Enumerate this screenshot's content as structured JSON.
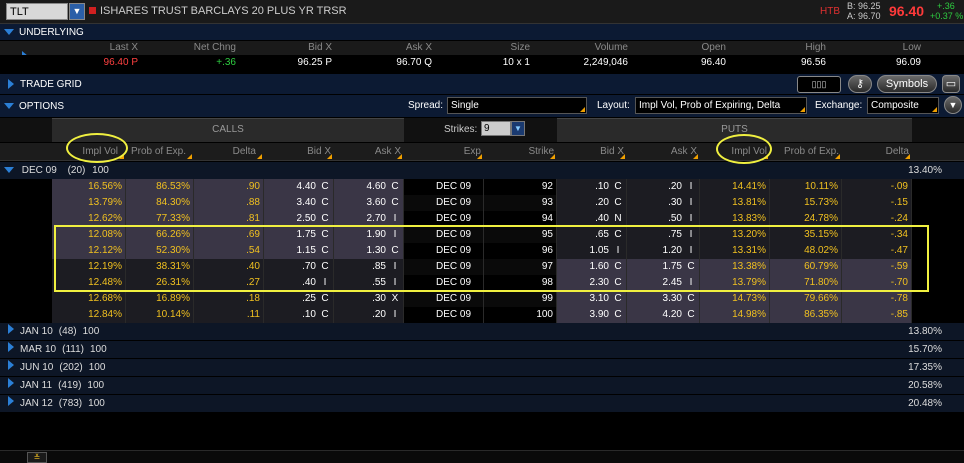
{
  "header": {
    "symbol": "TLT",
    "title": "ISHARES TRUST BARCLAYS 20 PLUS YR TRSR",
    "htb": "HTB",
    "bid_line": "B: 96.25",
    "ask_line": "A: 96.70",
    "last": "96.40",
    "change": "+.36",
    "change_pct": "+0.37 %"
  },
  "underlying": {
    "section_label": "UNDERLYING",
    "headers": [
      "Last X",
      "Net Chng",
      "Bid X",
      "Ask X",
      "Size",
      "Volume",
      "Open",
      "High",
      "Low"
    ],
    "values": [
      "96.40 P",
      "+.36",
      "96.25 P",
      "96.70 Q",
      "10 x 1",
      "2,249,046",
      "96.40",
      "96.56",
      "96.09"
    ]
  },
  "trade_grid": {
    "label": "TRADE GRID",
    "symbols_button": "Symbols"
  },
  "options": {
    "label": "OPTIONS",
    "spread_label": "Spread:",
    "spread_value": "Single",
    "layout_label": "Layout:",
    "layout_value": "Impl Vol, Prob of Expiring, Delta",
    "exchange_label": "Exchange:",
    "exchange_value": "Composite",
    "calls_label": "CALLS",
    "puts_label": "PUTS",
    "strikes_label": "Strikes:",
    "strikes_value": "9",
    "col_headers": {
      "c_iv": "Impl Vol",
      "c_prob": "Prob of Exp.",
      "c_delta": "Delta",
      "c_bid": "Bid X",
      "c_ask": "Ask X",
      "exp": "Exp",
      "strike": "Strike",
      "p_bid": "Bid X",
      "p_ask": "Ask X",
      "p_iv": "Impl Vol",
      "p_prob": "Prob of Exp.",
      "p_delta": "Delta"
    }
  },
  "expanded": {
    "label": "DEC 09",
    "days": "(20)",
    "mult": "100",
    "iv": "13.40%"
  },
  "rows": [
    {
      "civ": "16.56%",
      "cprob": "86.53%",
      "cdelta": ".90",
      "cbid": "4.40",
      "cbx": "C",
      "cask": "4.60",
      "cax": "C",
      "exp": "DEC 09",
      "strike": "92",
      "pbid": ".10",
      "pbx": "C",
      "pask": ".20",
      "pax": "I",
      "piv": "14.41%",
      "pprob": "10.11%",
      "pdelta": "-.09"
    },
    {
      "civ": "13.79%",
      "cprob": "84.30%",
      "cdelta": ".88",
      "cbid": "3.40",
      "cbx": "C",
      "cask": "3.60",
      "cax": "C",
      "exp": "DEC 09",
      "strike": "93",
      "pbid": ".20",
      "pbx": "C",
      "pask": ".30",
      "pax": "I",
      "piv": "13.81%",
      "pprob": "15.73%",
      "pdelta": "-.15"
    },
    {
      "civ": "12.62%",
      "cprob": "77.33%",
      "cdelta": ".81",
      "cbid": "2.50",
      "cbx": "C",
      "cask": "2.70",
      "cax": "I",
      "exp": "DEC 09",
      "strike": "94",
      "pbid": ".40",
      "pbx": "N",
      "pask": ".50",
      "pax": "I",
      "piv": "13.83%",
      "pprob": "24.78%",
      "pdelta": "-.24"
    },
    {
      "civ": "12.08%",
      "cprob": "66.26%",
      "cdelta": ".69",
      "cbid": "1.75",
      "cbx": "C",
      "cask": "1.90",
      "cax": "I",
      "exp": "DEC 09",
      "strike": "95",
      "pbid": ".65",
      "pbx": "C",
      "pask": ".75",
      "pax": "I",
      "piv": "13.20%",
      "pprob": "35.15%",
      "pdelta": "-.34"
    },
    {
      "civ": "12.12%",
      "cprob": "52.30%",
      "cdelta": ".54",
      "cbid": "1.15",
      "cbx": "C",
      "cask": "1.30",
      "cax": "C",
      "exp": "DEC 09",
      "strike": "96",
      "pbid": "1.05",
      "pbx": "I",
      "pask": "1.20",
      "pax": "I",
      "piv": "13.31%",
      "pprob": "48.02%",
      "pdelta": "-.47"
    },
    {
      "civ": "12.19%",
      "cprob": "38.31%",
      "cdelta": ".40",
      "cbid": ".70",
      "cbx": "C",
      "cask": ".85",
      "cax": "I",
      "exp": "DEC 09",
      "strike": "97",
      "pbid": "1.60",
      "pbx": "C",
      "pask": "1.75",
      "pax": "C",
      "piv": "13.38%",
      "pprob": "60.79%",
      "pdelta": "-.59"
    },
    {
      "civ": "12.48%",
      "cprob": "26.31%",
      "cdelta": ".27",
      "cbid": ".40",
      "cbx": "I",
      "cask": ".55",
      "cax": "I",
      "exp": "DEC 09",
      "strike": "98",
      "pbid": "2.30",
      "pbx": "C",
      "pask": "2.45",
      "pax": "I",
      "piv": "13.79%",
      "pprob": "71.80%",
      "pdelta": "-.70"
    },
    {
      "civ": "12.68%",
      "cprob": "16.89%",
      "cdelta": ".18",
      "cbid": ".25",
      "cbx": "C",
      "cask": ".30",
      "cax": "X",
      "exp": "DEC 09",
      "strike": "99",
      "pbid": "3.10",
      "pbx": "C",
      "pask": "3.30",
      "pax": "C",
      "piv": "14.73%",
      "pprob": "79.66%",
      "pdelta": "-.78"
    },
    {
      "civ": "12.84%",
      "cprob": "10.14%",
      "cdelta": ".11",
      "cbid": ".10",
      "cbx": "C",
      "cask": ".20",
      "cax": "I",
      "exp": "DEC 09",
      "strike": "100",
      "pbid": "3.90",
      "pbx": "C",
      "pask": "4.20",
      "pax": "C",
      "piv": "14.98%",
      "pprob": "86.35%",
      "pdelta": "-.85"
    }
  ],
  "collapsed": [
    {
      "label": "JAN 10",
      "days": "(48)",
      "mult": "100",
      "iv": "13.80%"
    },
    {
      "label": "MAR 10",
      "days": "(111)",
      "mult": "100",
      "iv": "15.70%"
    },
    {
      "label": "JUN 10",
      "days": "(202)",
      "mult": "100",
      "iv": "17.35%"
    },
    {
      "label": "JAN 11",
      "days": "(419)",
      "mult": "100",
      "iv": "20.58%"
    },
    {
      "label": "JAN 12",
      "days": "(783)",
      "mult": "100",
      "iv": "20.48%"
    }
  ]
}
